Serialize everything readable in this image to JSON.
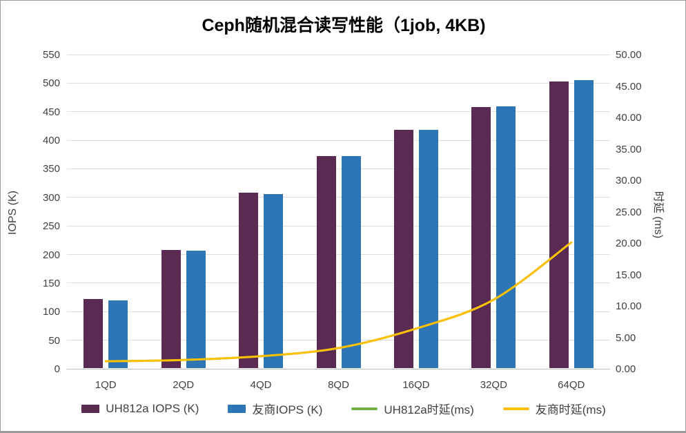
{
  "title": "Ceph随机混合读写性能（1job, 4KB)",
  "colors": {
    "bar_uh812a": "#5B2A52",
    "bar_vendor": "#2E75B6",
    "line_uh812a": "#70AD47",
    "line_vendor": "#FFC000",
    "gridline": "#DCDCDC",
    "axis_line": "#BFBFBF",
    "tick_text": "#404040",
    "title_text": "#000000"
  },
  "chart_data": {
    "type": "bar",
    "subtype": "grouped bars with smooth overlay lines (dual axis)",
    "title": "Ceph随机混合读写性能（1job, 4KB)",
    "categories": [
      "1QD",
      "2QD",
      "4QD",
      "8QD",
      "16QD",
      "32QD",
      "64QD"
    ],
    "bar_series": [
      {
        "name": "UH812a IOPS (K)",
        "color": "#5B2A52",
        "axis": "left",
        "values": [
          121,
          207,
          307,
          371,
          417,
          457,
          502
        ]
      },
      {
        "name": "友商IOPS (K)",
        "color": "#2E75B6",
        "axis": "left",
        "values": [
          119,
          205,
          305,
          371,
          417,
          458,
          504
        ]
      }
    ],
    "line_series": [
      {
        "name": "UH812a时延(ms)",
        "color": "#70AD47",
        "axis": "right",
        "values": [
          1.2,
          1.4,
          2.0,
          3.3,
          6.4,
          11.0,
          20.1
        ]
      },
      {
        "name": "友商时延(ms)",
        "color": "#FFC000",
        "axis": "right",
        "values": [
          1.2,
          1.4,
          2.0,
          3.3,
          6.4,
          11.0,
          20.1
        ]
      }
    ],
    "left_axis": {
      "label": "IOPS (K)",
      "min": 0,
      "max": 550,
      "step": 50,
      "ticks": [
        "0",
        "50",
        "100",
        "150",
        "200",
        "250",
        "300",
        "350",
        "400",
        "450",
        "500",
        "550"
      ]
    },
    "right_axis": {
      "label": "时延 (ms)",
      "min": 0,
      "max": 50,
      "step": 5,
      "ticks": [
        "0.00",
        "5.00",
        "10.00",
        "15.00",
        "20.00",
        "25.00",
        "30.00",
        "35.00",
        "40.00",
        "45.00",
        "50.00"
      ]
    },
    "grid": true,
    "legend_position": "bottom"
  }
}
